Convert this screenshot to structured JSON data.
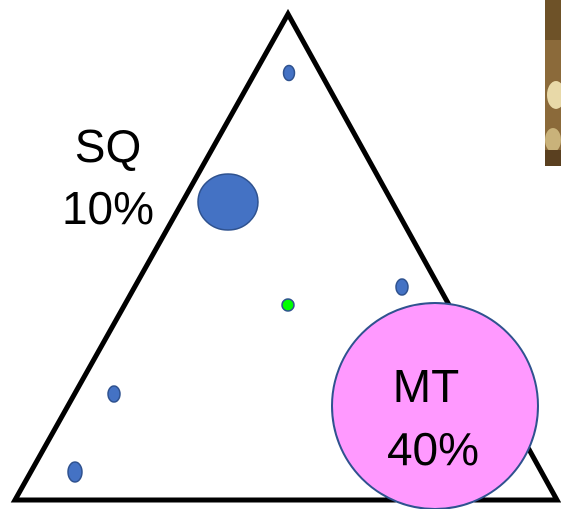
{
  "labels": {
    "sq_name": "SQ",
    "sq_value": "10%",
    "mt_name": "MT",
    "mt_value": "40%"
  },
  "colors": {
    "outline": "#000000",
    "blue_dot": "#4472C4",
    "blue_dot_stroke": "#2F528F",
    "green_dot": "#00FF00",
    "green_dot_stroke": "#2F528F",
    "pink_circle": "#FF99FF",
    "pink_circle_stroke": "#2F528F",
    "photo_brown": "#8B6A3A",
    "photo_light": "#E8D9A8",
    "photo_dark": "#5A4020"
  }
}
